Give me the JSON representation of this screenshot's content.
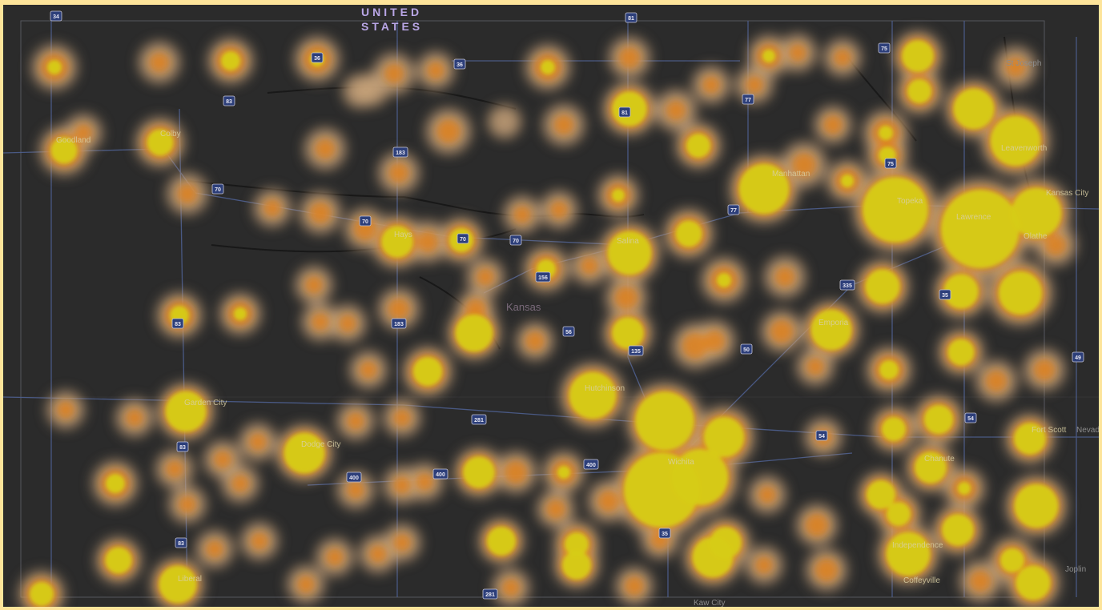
{
  "map": {
    "country_label": "UNITED STATES",
    "state_label": "Kansas",
    "colors": {
      "background": "#2b2b2b",
      "frame": "#fde49a",
      "heat_low": "#c8a27a",
      "heat_mid": "#e0801a",
      "heat_high": "#d6cc14",
      "roads": "#5a6fa8",
      "rivers": "#141414"
    },
    "cities": [
      {
        "name": "Goodland"
      },
      {
        "name": "Colby"
      },
      {
        "name": "Hays"
      },
      {
        "name": "Salina"
      },
      {
        "name": "Manhattan"
      },
      {
        "name": "Topeka"
      },
      {
        "name": "Leavenworth"
      },
      {
        "name": "Kansas City"
      },
      {
        "name": "Lawrence"
      },
      {
        "name": "Olathe"
      },
      {
        "name": "St Joseph"
      },
      {
        "name": "Emporia"
      },
      {
        "name": "Hutchinson"
      },
      {
        "name": "Wichita"
      },
      {
        "name": "Garden City"
      },
      {
        "name": "Dodge City"
      },
      {
        "name": "Liberal"
      },
      {
        "name": "Independence"
      },
      {
        "name": "Coffeyville"
      },
      {
        "name": "Chanute"
      },
      {
        "name": "Fort Scott"
      },
      {
        "name": "Nevada"
      },
      {
        "name": "Joplin"
      },
      {
        "name": "Kaw City"
      }
    ],
    "highway_shields": [
      {
        "label": "34"
      },
      {
        "label": "83"
      },
      {
        "label": "36"
      },
      {
        "label": "36"
      },
      {
        "label": "183"
      },
      {
        "label": "70"
      },
      {
        "label": "70"
      },
      {
        "label": "70"
      },
      {
        "label": "70"
      },
      {
        "label": "81"
      },
      {
        "label": "81"
      },
      {
        "label": "77"
      },
      {
        "label": "77"
      },
      {
        "label": "75"
      },
      {
        "label": "75"
      },
      {
        "label": "156"
      },
      {
        "label": "56"
      },
      {
        "label": "183"
      },
      {
        "label": "83"
      },
      {
        "label": "135"
      },
      {
        "label": "50"
      },
      {
        "label": "335"
      },
      {
        "label": "35"
      },
      {
        "label": "49"
      },
      {
        "label": "54"
      },
      {
        "label": "54"
      },
      {
        "label": "281"
      },
      {
        "label": "400"
      },
      {
        "label": "400"
      },
      {
        "label": "400"
      },
      {
        "label": "83"
      },
      {
        "label": "83"
      },
      {
        "label": "35"
      },
      {
        "label": "281"
      }
    ]
  }
}
